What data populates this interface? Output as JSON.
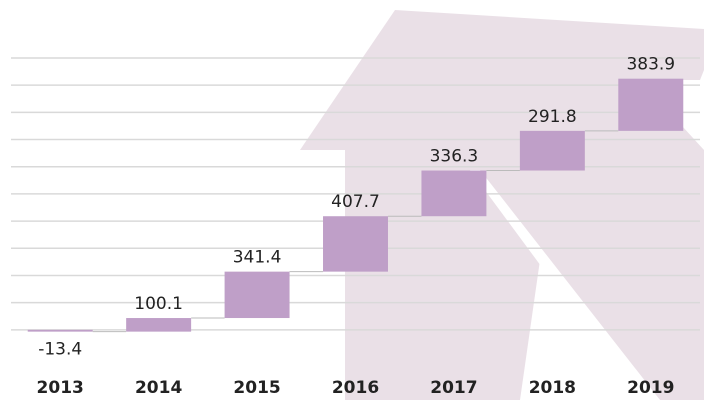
{
  "chart_data": {
    "type": "waterfall",
    "categories": [
      "2013",
      "2014",
      "2015",
      "2016",
      "2017",
      "2018",
      "2019"
    ],
    "values": [
      -13.4,
      100.1,
      341.4,
      407.7,
      336.3,
      291.8,
      383.9
    ],
    "color": "#bf9fc8",
    "ylim": [
      -200,
      2000
    ],
    "yticks": [
      0,
      200,
      400,
      600,
      800,
      1000,
      1200,
      1400,
      1600,
      1800,
      2000
    ],
    "grid": true
  }
}
